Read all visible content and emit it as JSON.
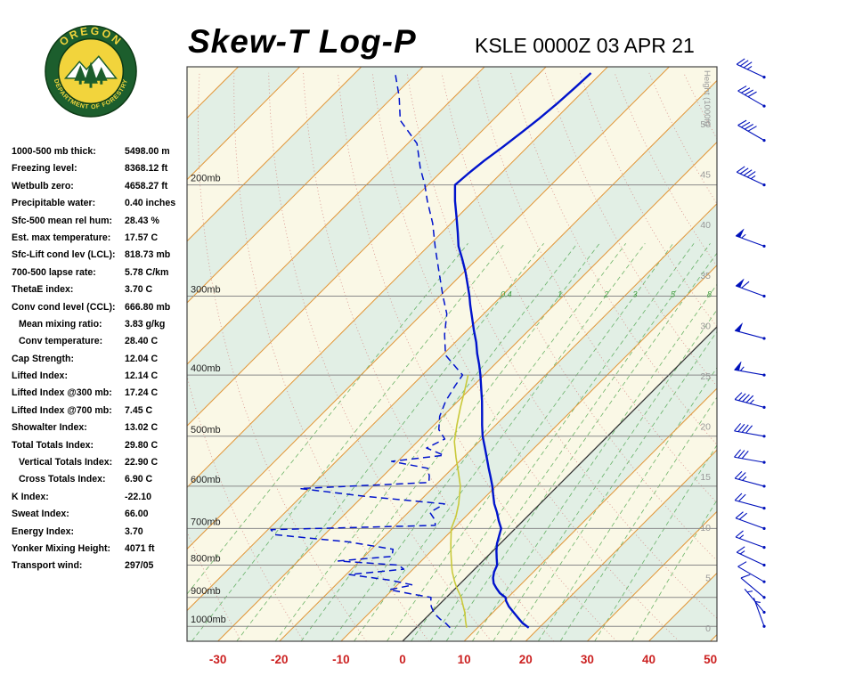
{
  "header": {
    "title": "Skew-T Log-P",
    "station_line": "KSLE 0000Z 03 APR 21",
    "logo_top": "OREGON",
    "logo_bottom": "DEPARTMENT OF FORESTRY"
  },
  "indices": [
    {
      "label": "1000-500 mb thick:",
      "value": "5498.00 m",
      "indent": false
    },
    {
      "label": "Freezing level:",
      "value": "8368.12 ft",
      "indent": false
    },
    {
      "label": "Wetbulb zero:",
      "value": "4658.27 ft",
      "indent": false
    },
    {
      "label": "Precipitable water:",
      "value": "0.40 inches",
      "indent": false
    },
    {
      "label": "Sfc-500 mean rel hum:",
      "value": "28.43 %",
      "indent": false
    },
    {
      "label": "Est. max temperature:",
      "value": "17.57 C",
      "indent": false
    },
    {
      "label": "Sfc-Lift cond lev (LCL):",
      "value": "818.73 mb",
      "indent": false
    },
    {
      "label": "700-500 lapse rate:",
      "value": "5.78 C/km",
      "indent": false
    },
    {
      "label": "ThetaE index:",
      "value": "3.70 C",
      "indent": false
    },
    {
      "label": "Conv cond level (CCL):",
      "value": "666.80 mb",
      "indent": false
    },
    {
      "label": "Mean mixing ratio:",
      "value": "3.83 g/kg",
      "indent": true
    },
    {
      "label": "Conv temperature:",
      "value": "28.40 C",
      "indent": true
    },
    {
      "label": "Cap Strength:",
      "value": "12.04 C",
      "indent": false
    },
    {
      "label": "Lifted Index:",
      "value": "12.14 C",
      "indent": false
    },
    {
      "label": "Lifted Index @300 mb:",
      "value": "17.24 C",
      "indent": false
    },
    {
      "label": "Lifted Index @700 mb:",
      "value": "7.45 C",
      "indent": false
    },
    {
      "label": "Showalter Index:",
      "value": "13.02 C",
      "indent": false
    },
    {
      "label": "Total Totals Index:",
      "value": "29.80 C",
      "indent": false
    },
    {
      "label": "Vertical Totals Index:",
      "value": "22.90 C",
      "indent": true
    },
    {
      "label": "Cross Totals Index:",
      "value": "6.90 C",
      "indent": true
    },
    {
      "label": "K Index:",
      "value": "-22.10",
      "indent": false
    },
    {
      "label": "Sweat Index:",
      "value": "66.00",
      "indent": false
    },
    {
      "label": "Energy Index:",
      "value": "3.70",
      "indent": false
    },
    {
      "label": "Yonker Mixing Height:",
      "value": "4071 ft",
      "indent": false
    },
    {
      "label": "Transport wind:",
      "value": "297/05",
      "indent": false
    }
  ],
  "chart_data": {
    "type": "skewt-log-p",
    "station": "KSLE",
    "valid": "0000Z 03 APR 21",
    "pressure_axis": {
      "unit": "mb",
      "range": [
        130,
        1056
      ],
      "gridlines": [
        200,
        300,
        400,
        500,
        600,
        700,
        800,
        900,
        1000
      ],
      "label_suffix": "mb"
    },
    "temp_axis": {
      "unit": "C",
      "ticks": [
        -30,
        -20,
        -10,
        0,
        10,
        20,
        30,
        40,
        50
      ],
      "skew_deg": 45
    },
    "height_axis": {
      "unit": "1000 ft",
      "ticks": [
        0,
        5,
        10,
        15,
        20,
        25,
        30,
        35,
        40,
        45,
        50
      ],
      "caption": "Height (1000ft)"
    },
    "mixing_ratio_lines": [
      0.1,
      0.2,
      0.4,
      0.7,
      1,
      1.5,
      2,
      3,
      4,
      5,
      6,
      8,
      10,
      12,
      16,
      20,
      28,
      40
    ],
    "mixing_ratio_labels": [
      "0.4",
      "1",
      "2",
      "3",
      "5",
      "8"
    ],
    "dry_adiabats": {
      "theta_min": -40,
      "theta_max": 210,
      "step": 10
    },
    "sounding": {
      "temperature_c": [
        [
          1005,
          18.3
        ],
        [
          988,
          16.5
        ],
        [
          970,
          15.0
        ],
        [
          950,
          13.3
        ],
        [
          930,
          11.6
        ],
        [
          912,
          10.3
        ],
        [
          900,
          9.6
        ],
        [
          886,
          8.0
        ],
        [
          870,
          6.6
        ],
        [
          855,
          5.4
        ],
        [
          838,
          4.4
        ],
        [
          820,
          3.6
        ],
        [
          800,
          3.0
        ],
        [
          780,
          1.8
        ],
        [
          760,
          0.6
        ],
        [
          740,
          -0.5
        ],
        [
          720,
          -1.4
        ],
        [
          700,
          -2.3
        ],
        [
          680,
          -4.0
        ],
        [
          660,
          -5.6
        ],
        [
          640,
          -7.4
        ],
        [
          620,
          -9.0
        ],
        [
          600,
          -10.6
        ],
        [
          580,
          -12.4
        ],
        [
          560,
          -14.3
        ],
        [
          540,
          -16.2
        ],
        [
          520,
          -18.2
        ],
        [
          500,
          -20.3
        ],
        [
          480,
          -22.2
        ],
        [
          460,
          -24.1
        ],
        [
          440,
          -26.1
        ],
        [
          420,
          -28.3
        ],
        [
          400,
          -30.6
        ],
        [
          385,
          -32.5
        ],
        [
          370,
          -34.6
        ],
        [
          355,
          -36.6
        ],
        [
          340,
          -38.9
        ],
        [
          325,
          -41.2
        ],
        [
          310,
          -43.6
        ],
        [
          300,
          -45.2
        ],
        [
          288,
          -47.3
        ],
        [
          275,
          -49.7
        ],
        [
          262,
          -52.4
        ],
        [
          250,
          -55.1
        ],
        [
          238,
          -57.4
        ],
        [
          225,
          -60.1
        ],
        [
          212,
          -63.0
        ],
        [
          200,
          -65.6
        ],
        [
          192,
          -65.3
        ],
        [
          183,
          -64.8
        ],
        [
          174,
          -64.0
        ],
        [
          165,
          -63.3
        ],
        [
          157,
          -62.7
        ],
        [
          148,
          -62.2
        ],
        [
          140,
          -61.9
        ],
        [
          133,
          -61.7
        ]
      ],
      "dewpoint_c": [
        [
          1005,
          5.5
        ],
        [
          990,
          4.2
        ],
        [
          975,
          2.6
        ],
        [
          960,
          1.2
        ],
        [
          945,
          0.0
        ],
        [
          930,
          -1.0
        ],
        [
          915,
          -1.8
        ],
        [
          900,
          -2.5
        ],
        [
          888,
          -6.5
        ],
        [
          875,
          -10.5
        ],
        [
          860,
          -7.5
        ],
        [
          845,
          -12.0
        ],
        [
          828,
          -19.5
        ],
        [
          812,
          -11.5
        ],
        [
          800,
          -13.0
        ],
        [
          788,
          -23.5
        ],
        [
          775,
          -15.5
        ],
        [
          755,
          -16.5
        ],
        [
          735,
          -25.0
        ],
        [
          716,
          -38.0
        ],
        [
          703,
          -39.5
        ],
        [
          692,
          -13.5
        ],
        [
          678,
          -14.5
        ],
        [
          660,
          -16.5
        ],
        [
          640,
          -15.5
        ],
        [
          622,
          -30.0
        ],
        [
          605,
          -41.5
        ],
        [
          592,
          -21.5
        ],
        [
          578,
          -22.5
        ],
        [
          562,
          -24.0
        ],
        [
          548,
          -31.0
        ],
        [
          536,
          -23.5
        ],
        [
          522,
          -27.5
        ],
        [
          505,
          -26.0
        ],
        [
          488,
          -28.5
        ],
        [
          465,
          -30.5
        ],
        [
          440,
          -32.0
        ],
        [
          415,
          -33.0
        ],
        [
          400,
          -33.5
        ],
        [
          372,
          -39.5
        ],
        [
          345,
          -43.0
        ],
        [
          320,
          -46.0
        ],
        [
          300,
          -49.5
        ],
        [
          275,
          -54.0
        ],
        [
          252,
          -58.5
        ],
        [
          230,
          -63.0
        ],
        [
          212,
          -67.5
        ],
        [
          200,
          -70.5
        ],
        [
          188,
          -74.0
        ],
        [
          172,
          -78.5
        ],
        [
          158,
          -85.0
        ],
        [
          145,
          -89.0
        ],
        [
          133,
          -93.5
        ]
      ],
      "wetbulb_c": [
        [
          1005,
          8.2
        ],
        [
          980,
          6.9
        ],
        [
          950,
          5.4
        ],
        [
          920,
          3.6
        ],
        [
          900,
          2.4
        ],
        [
          870,
          0.2
        ],
        [
          850,
          -1.2
        ],
        [
          820,
          -3.2
        ],
        [
          800,
          -4.4
        ],
        [
          770,
          -6.2
        ],
        [
          740,
          -8.0
        ],
        [
          700,
          -10.4
        ],
        [
          670,
          -11.6
        ],
        [
          640,
          -13.2
        ],
        [
          600,
          -15.8
        ],
        [
          570,
          -18.4
        ],
        [
          540,
          -21.2
        ],
        [
          510,
          -24.0
        ],
        [
          480,
          -26.3
        ],
        [
          450,
          -28.6
        ],
        [
          420,
          -30.9
        ],
        [
          400,
          -32.6
        ]
      ]
    },
    "winds_kt": [
      {
        "p": 1000,
        "dir": 340,
        "spd": 5
      },
      {
        "p": 950,
        "dir": 320,
        "spd": 5
      },
      {
        "p": 900,
        "dir": 310,
        "spd": 10
      },
      {
        "p": 850,
        "dir": 300,
        "spd": 10
      },
      {
        "p": 800,
        "dir": 295,
        "spd": 15
      },
      {
        "p": 750,
        "dir": 290,
        "spd": 15
      },
      {
        "p": 700,
        "dir": 290,
        "spd": 20
      },
      {
        "p": 650,
        "dir": 285,
        "spd": 20
      },
      {
        "p": 600,
        "dir": 285,
        "spd": 25
      },
      {
        "p": 550,
        "dir": 280,
        "spd": 30
      },
      {
        "p": 500,
        "dir": 280,
        "spd": 40
      },
      {
        "p": 450,
        "dir": 285,
        "spd": 45
      },
      {
        "p": 400,
        "dir": 280,
        "spd": 55
      },
      {
        "p": 350,
        "dir": 285,
        "spd": 50
      },
      {
        "p": 300,
        "dir": 290,
        "spd": 60
      },
      {
        "p": 250,
        "dir": 290,
        "spd": 55
      },
      {
        "p": 200,
        "dir": 295,
        "spd": 45
      },
      {
        "p": 170,
        "dir": 300,
        "spd": 40
      },
      {
        "p": 150,
        "dir": 300,
        "spd": 40
      },
      {
        "p": 135,
        "dir": 295,
        "spd": 35
      }
    ],
    "colors": {
      "temperature": "#0013cc",
      "dewpoint": "#0013cc",
      "wetbulb": "#c9c93a",
      "isotherm": "#e2973a",
      "zero_isotherm": "#333333",
      "band_cream": "#faf8e6",
      "band_green": "#e2efe5",
      "dry_adiabat": "#d4827e",
      "mixing_ratio": "#3f9e3f",
      "gridline": "#8a8a8a",
      "pressure_label": "#222222",
      "height_label": "#999999",
      "temp_label": "#cc2222",
      "wind_barb": "#0011bb"
    }
  }
}
